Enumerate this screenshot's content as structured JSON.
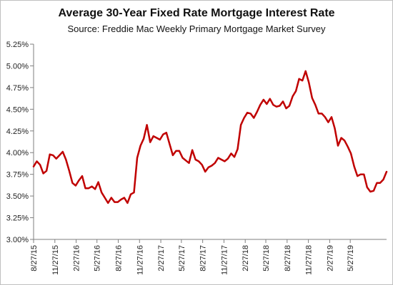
{
  "chart_data": {
    "type": "line",
    "title": "Average 30-Year Fixed Rate Mortgage Interest Rate",
    "subtitle": "Source: Freddie Mac Weekly Primary Mortgage Market Survey",
    "xlabel": "",
    "ylabel": "",
    "ylim": [
      3.0,
      5.25
    ],
    "xlim": [
      "2015-08-27",
      "2019-10-31"
    ],
    "y_ticks": [
      "3.00%",
      "3.25%",
      "3.50%",
      "3.75%",
      "4.00%",
      "4.25%",
      "4.50%",
      "4.75%",
      "5.00%",
      "5.25%"
    ],
    "x_ticks": [
      "8/27/15",
      "11/27/15",
      "2/27/16",
      "5/27/16",
      "8/27/16",
      "11/27/16",
      "2/27/17",
      "5/27/17",
      "8/27/17",
      "11/27/17",
      "2/27/18",
      "5/27/18",
      "8/27/18",
      "11/27/18",
      "2/27/19",
      "5/27/19"
    ],
    "grid": false,
    "legend": "none",
    "line_color": "#c00000",
    "series": [
      {
        "x": [
          "2015-08-27",
          "2015-09-10",
          "2015-09-24",
          "2015-10-08",
          "2015-10-22",
          "2015-11-05",
          "2015-11-19",
          "2015-12-03",
          "2015-12-17",
          "2015-12-31",
          "2016-01-14",
          "2016-01-28",
          "2016-02-11",
          "2016-02-25",
          "2016-03-10",
          "2016-03-24",
          "2016-04-07",
          "2016-04-21",
          "2016-05-05",
          "2016-05-19",
          "2016-06-02",
          "2016-06-16",
          "2016-06-30",
          "2016-07-14",
          "2016-07-28",
          "2016-08-11",
          "2016-08-25",
          "2016-09-08",
          "2016-09-22",
          "2016-10-06",
          "2016-10-20",
          "2016-11-03",
          "2016-11-17",
          "2016-12-01",
          "2016-12-15",
          "2016-12-29",
          "2017-01-12",
          "2017-01-26",
          "2017-02-09",
          "2017-02-23",
          "2017-03-09",
          "2017-03-23",
          "2017-04-06",
          "2017-04-20",
          "2017-05-04",
          "2017-05-18",
          "2017-06-01",
          "2017-06-15",
          "2017-06-29",
          "2017-07-13",
          "2017-07-27",
          "2017-08-10",
          "2017-08-24",
          "2017-09-07",
          "2017-09-21",
          "2017-10-05",
          "2017-10-19",
          "2017-11-02",
          "2017-11-16",
          "2017-11-30",
          "2017-12-14",
          "2017-12-28",
          "2018-01-11",
          "2018-01-25",
          "2018-02-08",
          "2018-02-22",
          "2018-03-08",
          "2018-03-22",
          "2018-04-05",
          "2018-04-19",
          "2018-05-03",
          "2018-05-17",
          "2018-05-31",
          "2018-06-14",
          "2018-06-28",
          "2018-07-12",
          "2018-07-26",
          "2018-08-09",
          "2018-08-23",
          "2018-09-06",
          "2018-09-20",
          "2018-10-04",
          "2018-10-18",
          "2018-11-01",
          "2018-11-15",
          "2018-11-29",
          "2018-12-13",
          "2018-12-27",
          "2019-01-10",
          "2019-01-24",
          "2019-02-07",
          "2019-02-21",
          "2019-03-07",
          "2019-03-21",
          "2019-04-04",
          "2019-04-18",
          "2019-05-02",
          "2019-05-16",
          "2019-05-30",
          "2019-06-13",
          "2019-06-27",
          "2019-07-11",
          "2019-07-25",
          "2019-08-08",
          "2019-08-22",
          "2019-09-05",
          "2019-09-19",
          "2019-10-03",
          "2019-10-17",
          "2019-10-31"
        ],
        "y": [
          3.84,
          3.9,
          3.86,
          3.76,
          3.79,
          3.98,
          3.97,
          3.93,
          3.97,
          4.01,
          3.92,
          3.79,
          3.65,
          3.62,
          3.68,
          3.73,
          3.59,
          3.59,
          3.61,
          3.58,
          3.66,
          3.54,
          3.48,
          3.42,
          3.48,
          3.43,
          3.43,
          3.46,
          3.48,
          3.42,
          3.52,
          3.54,
          3.94,
          4.08,
          4.16,
          4.32,
          4.12,
          4.19,
          4.17,
          4.15,
          4.21,
          4.23,
          4.1,
          3.97,
          4.02,
          4.02,
          3.94,
          3.91,
          3.88,
          4.03,
          3.92,
          3.9,
          3.86,
          3.78,
          3.83,
          3.85,
          3.88,
          3.94,
          3.92,
          3.9,
          3.93,
          3.99,
          3.95,
          4.04,
          4.32,
          4.4,
          4.46,
          4.45,
          4.4,
          4.47,
          4.55,
          4.61,
          4.56,
          4.62,
          4.55,
          4.53,
          4.54,
          4.59,
          4.51,
          4.54,
          4.65,
          4.71,
          4.85,
          4.83,
          4.94,
          4.81,
          4.63,
          4.55,
          4.45,
          4.45,
          4.41,
          4.35,
          4.41,
          4.28,
          4.08,
          4.17,
          4.14,
          4.07,
          3.99,
          3.84,
          3.73,
          3.75,
          3.75,
          3.6,
          3.55,
          3.56,
          3.65,
          3.65,
          3.69,
          3.78
        ]
      }
    ]
  }
}
